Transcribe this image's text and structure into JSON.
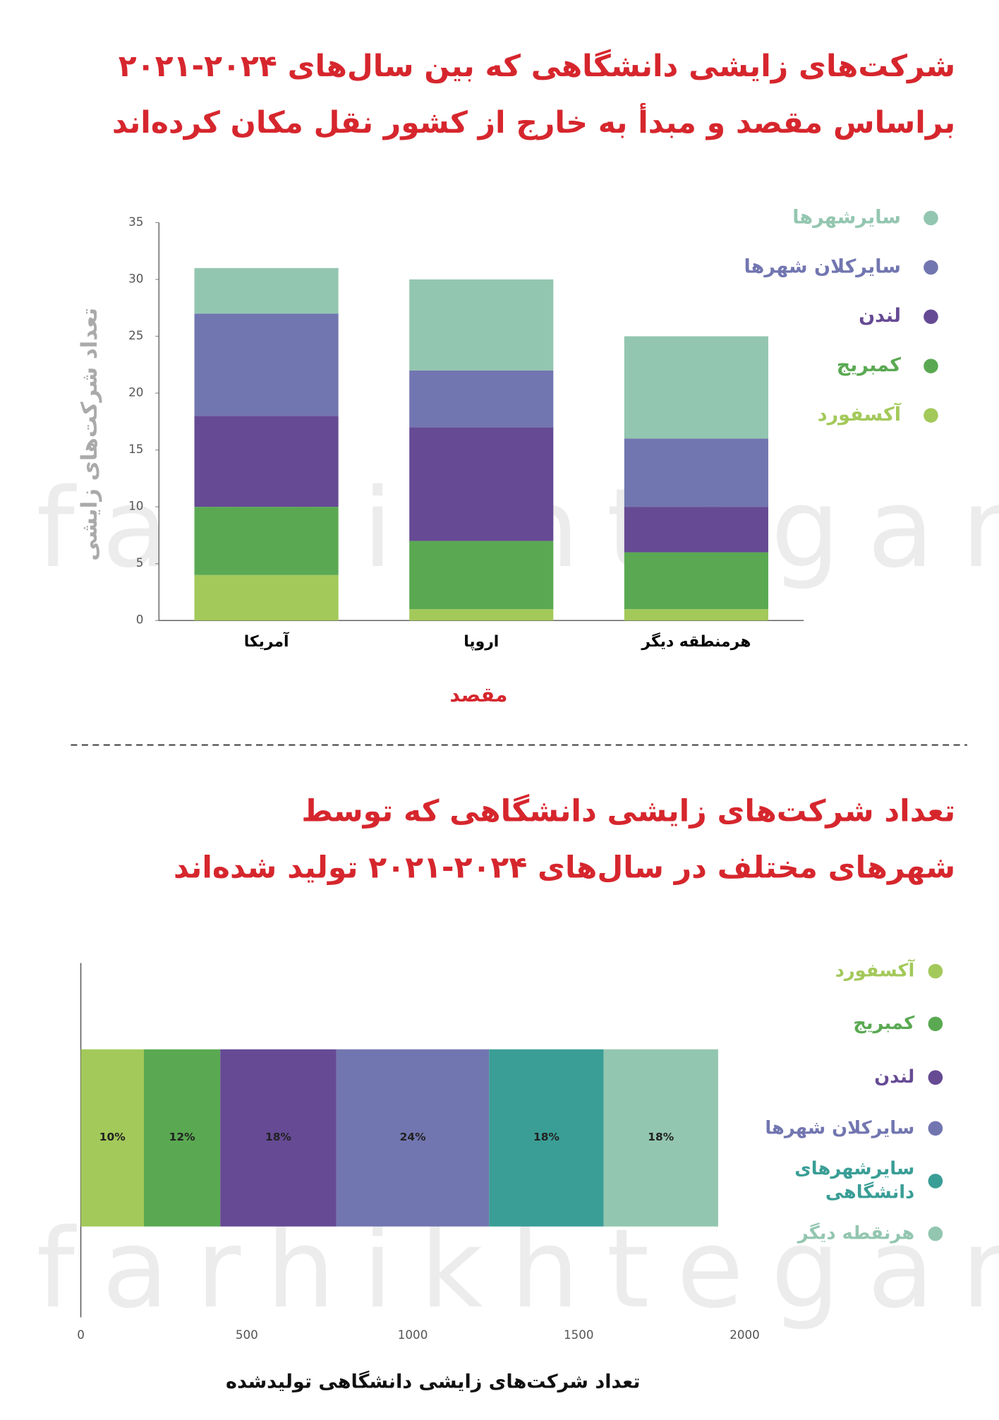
{
  "watermark": "farhikhtegan",
  "chart_data": [
    {
      "type": "stacked-bar",
      "title": [
        "شرکت‌های زایشی دانشگاهی که بین سال‌های ۲۰۲۴-۲۰۲۱",
        "براساس مقصد و مبدأ به خارج از کشور نقل مکان کرده‌اند"
      ],
      "x_label": "مقصد",
      "y_label": "تعداد شرکت‌های زایشی",
      "categories": [
        "آمریکا",
        "اروپا",
        "هرمنطقه دیگر"
      ],
      "series": [
        {
          "name": "آکسفورد",
          "color": "#a3c95a",
          "values": [
            4,
            1,
            1
          ]
        },
        {
          "name": "کمبریج",
          "color": "#5aa952",
          "values": [
            6,
            6,
            5
          ]
        },
        {
          "name": "لندن",
          "color": "#664a94",
          "values": [
            8,
            10,
            4
          ]
        },
        {
          "name": "سایرکلان شهرها",
          "color": "#7276b0",
          "values": [
            9,
            5,
            6
          ]
        },
        {
          "name": "سایرشهرها",
          "color": "#93c6b0",
          "values": [
            4,
            8,
            9
          ]
        }
      ],
      "ylim": [
        0,
        35
      ],
      "yticks": [
        0,
        5,
        10,
        15,
        20,
        25,
        30,
        35
      ]
    },
    {
      "type": "stacked-barh",
      "title": [
        "تعداد شرکت‌های زایشی دانشگاهی که توسط",
        "شهرهای مختلف در سال‌های ۲۰۲۴-۲۰۲۱ تولید شده‌اند"
      ],
      "x_label": "تعداد شرکت‌های زایشی دانشگاهی تولیدشده",
      "categories": [
        null
      ],
      "series": [
        {
          "name": "آکسفورد",
          "color": "#a3c95a",
          "values": [
            190
          ],
          "value_labels": [
            "10%"
          ]
        },
        {
          "name": "کمبریج",
          "color": "#5aa952",
          "values": [
            230
          ],
          "value_labels": [
            "12%"
          ]
        },
        {
          "name": "لندن",
          "color": "#664a94",
          "values": [
            350
          ],
          "value_labels": [
            "18%"
          ]
        },
        {
          "name": "سایرکلان شهرها",
          "color": "#7276b0",
          "values": [
            460
          ],
          "value_labels": [
            "24%"
          ]
        },
        {
          "name": [
            "سایرشهرهای",
            "دانشگاهی"
          ],
          "color": "#3a9e96",
          "values": [
            345
          ],
          "value_labels": [
            "18%"
          ]
        },
        {
          "name": "هرنقطه دیگر",
          "color": "#93c6b0",
          "values": [
            345
          ],
          "value_labels": [
            "18%"
          ]
        }
      ],
      "xlim": [
        0,
        2000
      ],
      "xticks": [
        0,
        500,
        1000,
        1500,
        2000
      ]
    }
  ]
}
